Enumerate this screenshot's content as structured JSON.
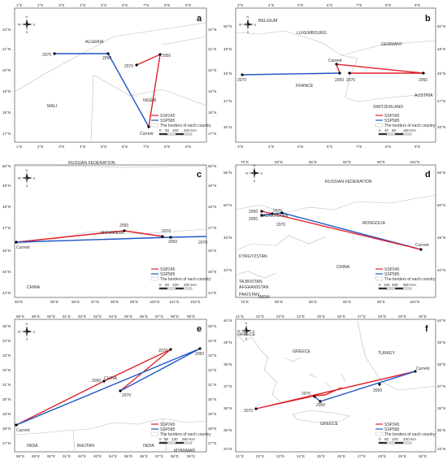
{
  "legend": {
    "ssp245": "SSP245",
    "ssp585": "SSP585",
    "borders": "The borders of each country"
  },
  "colors": {
    "ssp245": "#e0202a",
    "ssp585": "#1f55c8",
    "border": "#bbbbbb",
    "frame": "#333333"
  },
  "compass": {
    "n": "N",
    "s": "S",
    "e": "E",
    "w": "W"
  },
  "panels": [
    {
      "letter": "a",
      "x_ticks": [
        "1°E",
        "2°E",
        "3°E",
        "4°E",
        "5°E",
        "6°E",
        "7°E",
        "8°E",
        "9°E"
      ],
      "y_ticks": [
        "22°N",
        "21°N",
        "20°N",
        "19°N",
        "18°N",
        "17°N"
      ],
      "countries": [
        "ALGERIA",
        "MALI",
        "NIGER"
      ],
      "point_labels": [
        "2070",
        "2050",
        "2050",
        "2070",
        "Current"
      ],
      "scale": [
        "0",
        "50",
        "100",
        "200 Km"
      ]
    },
    {
      "letter": "b",
      "x_ticks": [
        "3°E",
        "4°E",
        "5°E",
        "6°E",
        "7°E",
        "8°E",
        "9°E"
      ],
      "y_ticks": [
        "50°N",
        "49°N",
        "48°N",
        "47°N",
        "46°N"
      ],
      "countries": [
        "BELGIUM",
        "LUXEMBOURG",
        "GERMANY",
        "FRANCE",
        "SWITZERLAND",
        "AUSTRIA"
      ],
      "point_labels": [
        "Current",
        "2070",
        "2050",
        "2070",
        "2050"
      ],
      "scale": [
        "0",
        "40",
        "80",
        "160 Km"
      ]
    },
    {
      "letter": "c",
      "x_ticks": [
        "93°E",
        "95°E",
        "96°E",
        "97°E",
        "98°E",
        "99°E",
        "100°E",
        "101°E",
        "102°E"
      ],
      "y_ticks": [
        "50°N",
        "49°N",
        "48°N",
        "47°N",
        "46°N",
        "45°N",
        "44°N"
      ],
      "countries": [
        "RUSSIAN FEDERATION",
        "MONGOLIA",
        "CHINA"
      ],
      "point_labels": [
        "Current",
        "2050",
        "2070",
        "2050",
        "2070"
      ],
      "scale": [
        "0",
        "50",
        "100",
        "200 Km"
      ]
    },
    {
      "letter": "d",
      "x_ticks": [
        "75°E",
        "80°E",
        "85°E",
        "90°E",
        "95°E",
        "100°E"
      ],
      "y_ticks": [
        "55°N",
        "50°N",
        "45°N",
        "40°N"
      ],
      "countries": [
        "RUSSIAN FEDERATION",
        "MONGOLIA",
        "KAZAKHSTAN",
        "KYRGYZSTAN",
        "CHINA",
        "TAJIKISTAN",
        "AFGHANISTAN",
        "PAKISTAN",
        "INDIA"
      ],
      "point_labels": [
        "2050",
        "2070",
        "2050",
        "2070",
        "Current"
      ],
      "scale": [
        "0",
        "165",
        "330",
        "660 Km"
      ]
    },
    {
      "letter": "e",
      "x_ticks": [
        "88°E",
        "89°E",
        "90°E",
        "91°E",
        "92°E",
        "93°E",
        "94°E",
        "95°E",
        "96°E",
        "97°E",
        "98°E",
        "99°E"
      ],
      "y_ticks": [
        "35°N",
        "34°N",
        "33°N",
        "32°N",
        "31°N",
        "30°N",
        "29°N",
        "28°N",
        "27°N"
      ],
      "countries": [
        "CHINA",
        "INDIA",
        "BHUTAN",
        "INDIA",
        "MYANMAR"
      ],
      "point_labels": [
        "2050",
        "2070",
        "2070",
        "2050",
        "Current"
      ],
      "scale": [
        "0",
        "65",
        "130",
        "260 Km"
      ]
    },
    {
      "letter": "f",
      "x_ticks": [
        "21°E",
        "22°E",
        "23°E",
        "24°E",
        "25°E",
        "26°E",
        "27°E",
        "28°E",
        "29°E",
        "30°E"
      ],
      "y_ticks": [
        "40°N",
        "39°N",
        "38°N",
        "37°N",
        "36°N",
        "35°N",
        "34°N"
      ],
      "countries": [
        "GREECE",
        "GREECE",
        "TURKEY",
        "GREECE"
      ],
      "point_labels": [
        "2070",
        "2070",
        "2050",
        "2050",
        "Current"
      ],
      "scale": [
        "0",
        "50",
        "100",
        "200 Km"
      ]
    }
  ]
}
